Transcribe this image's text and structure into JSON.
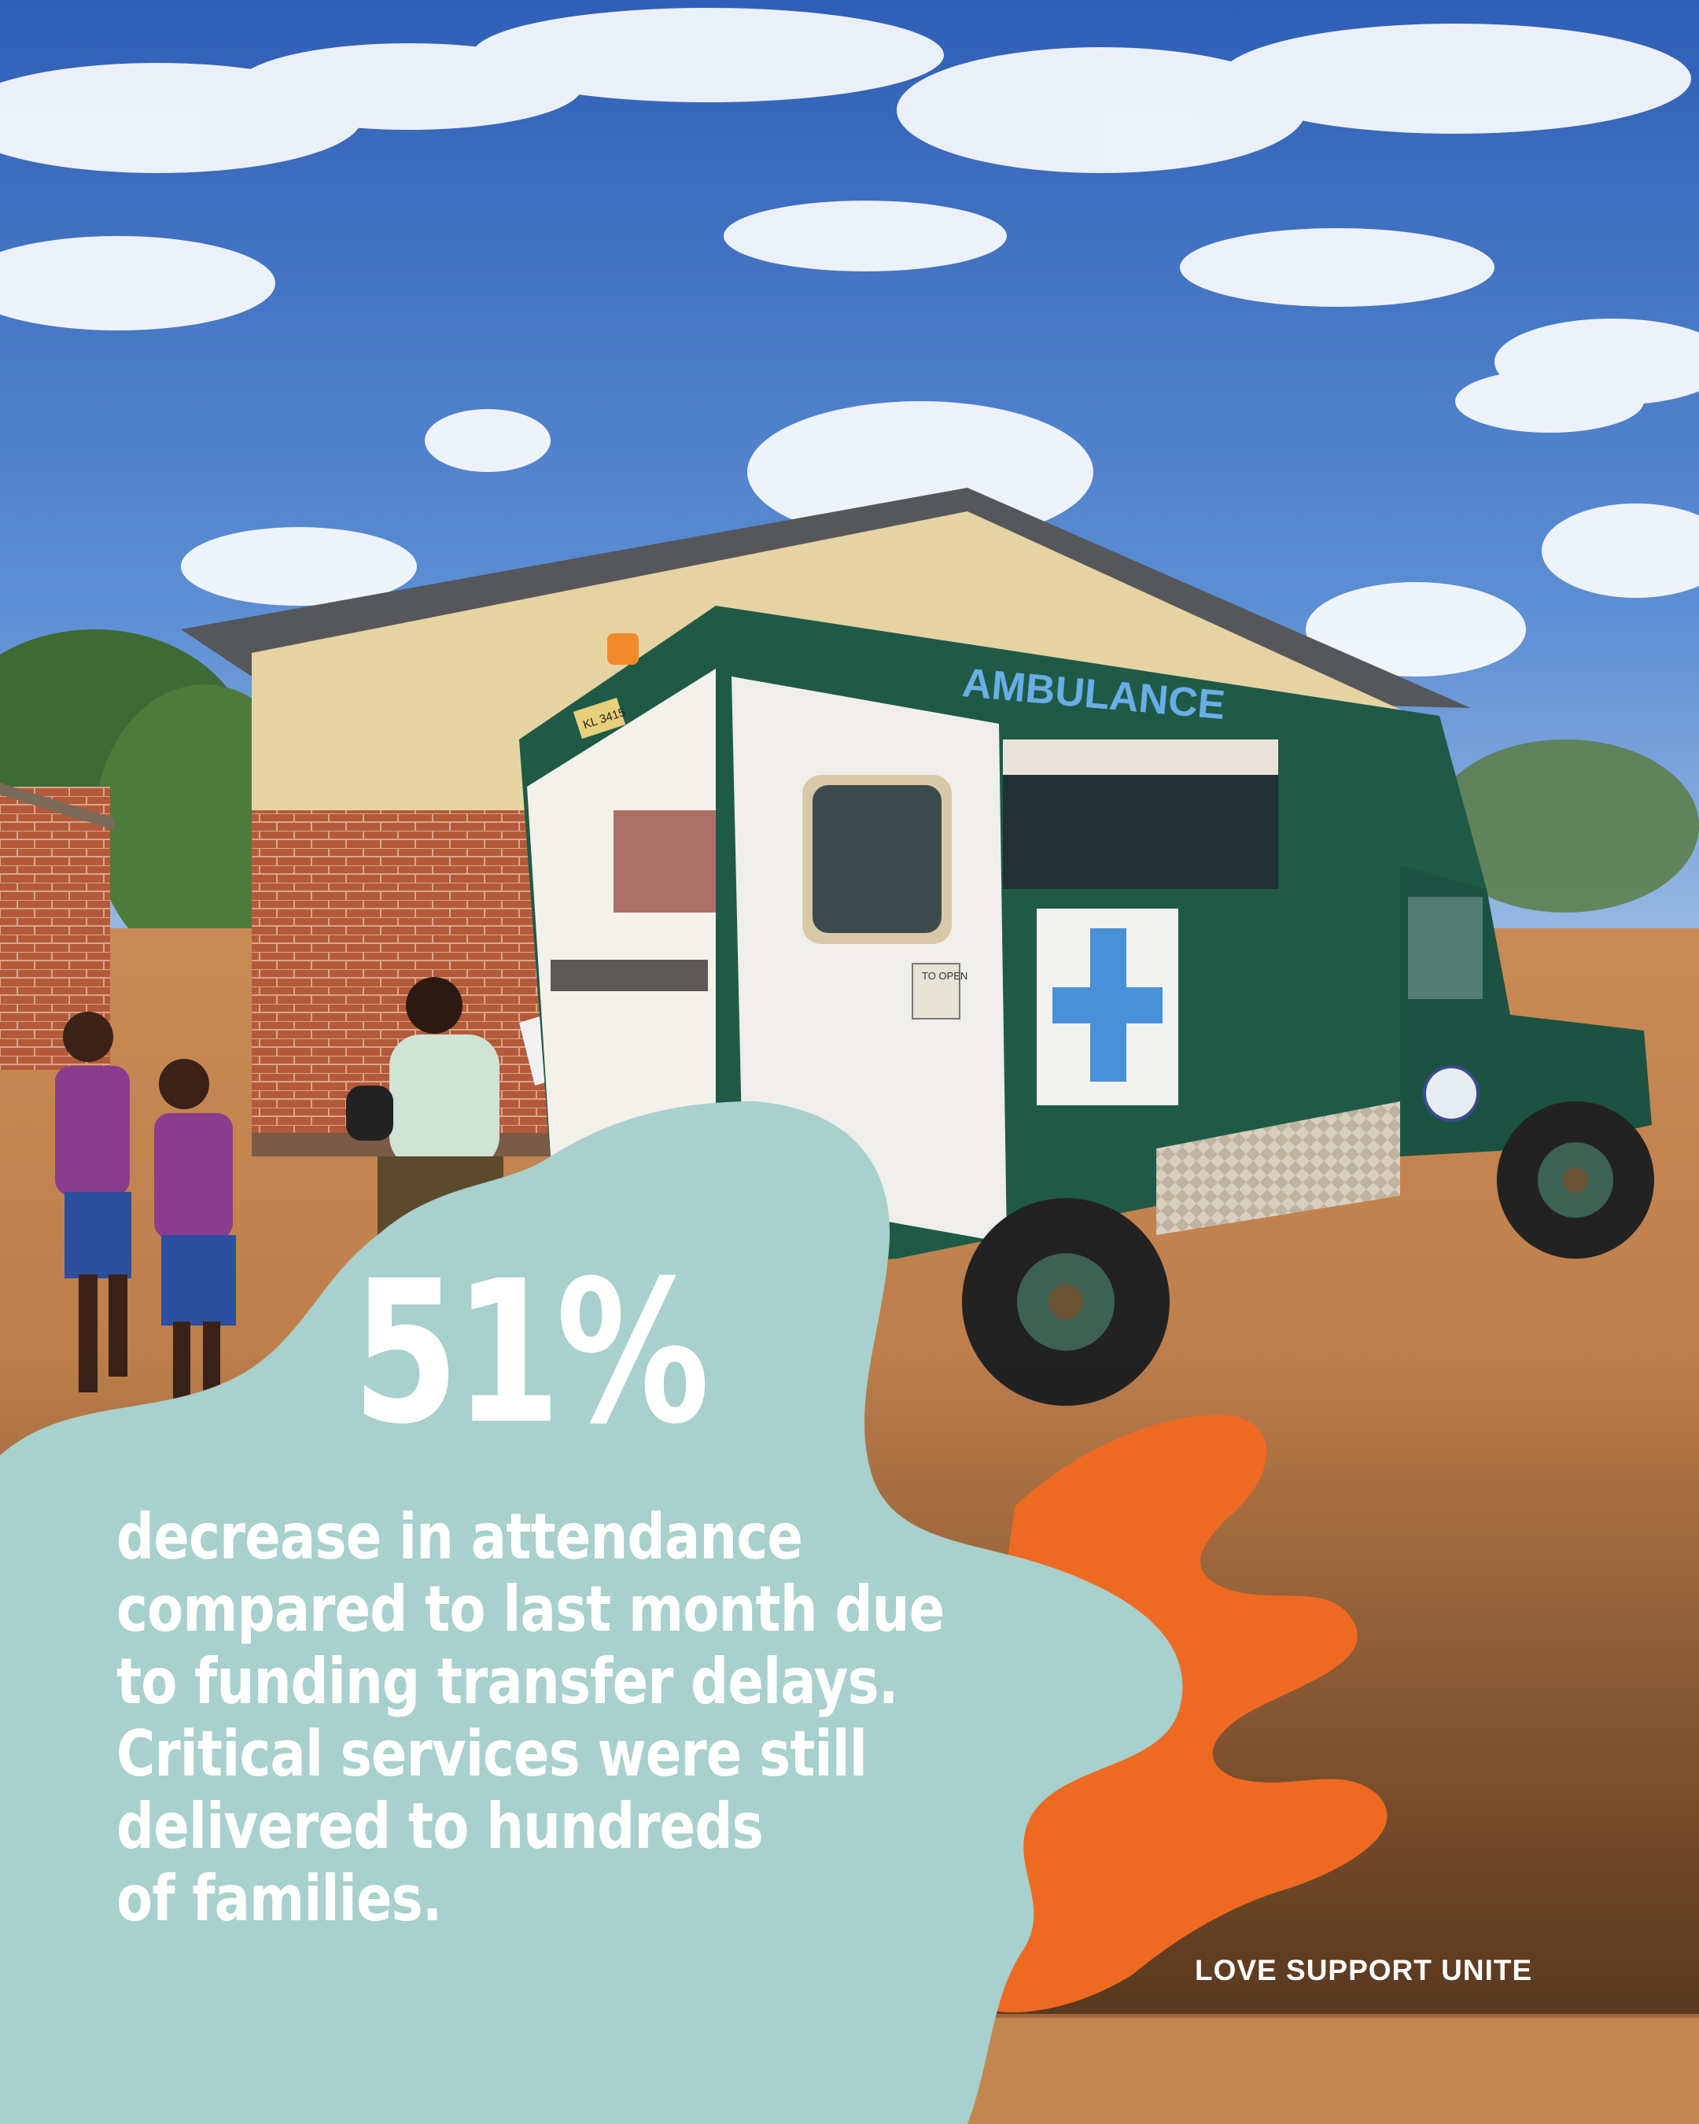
{
  "stat": {
    "value": "51%",
    "lines": [
      "decrease in attendance",
      "compared to last month due",
      "to funding transfer delays.",
      "Critical services were still",
      "delivered to hundreds",
      "of families."
    ]
  },
  "brand": {
    "tagline": "LOVE SUPPORT UNITE"
  },
  "photo": {
    "vehicle_sign": "AMBULANCE",
    "door_sign": "TO OPEN",
    "plate": "KL 3415"
  },
  "colors": {
    "sky": "#3c6dc0",
    "blob_teal": "#a8d0cc",
    "blob_orange": "#ee6a22",
    "vehicle_green": "#1f5a47",
    "ground": "#c08250"
  }
}
